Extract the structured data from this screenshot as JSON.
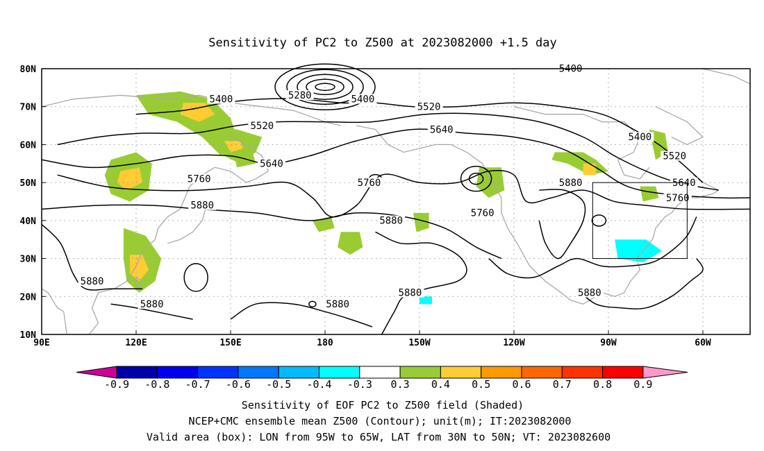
{
  "title": "Sensitivity of PC2 to Z500 at 2023082000 +1.5 day",
  "map": {
    "lon_labels": [
      "90E",
      "120E",
      "150E",
      "180",
      "150W",
      "120W",
      "90W",
      "60W"
    ],
    "lon_values": [
      90,
      120,
      150,
      180,
      210,
      240,
      270,
      300
    ],
    "lat_labels": [
      "10N",
      "20N",
      "30N",
      "40N",
      "50N",
      "60N",
      "70N",
      "80N"
    ],
    "lat_values": [
      10,
      20,
      30,
      40,
      50,
      60,
      70,
      80
    ],
    "lon_range": [
      90,
      315
    ],
    "lat_range": [
      10,
      80
    ],
    "grid": "dotted",
    "coastline_color": "#a9a9a9",
    "valid_box": {
      "lon": [
        265,
        295
      ],
      "lat": [
        30,
        50
      ]
    },
    "contour_labels": [
      {
        "text": "5400",
        "lon": 147,
        "lat": 71.5
      },
      {
        "text": "5280",
        "lon": 172,
        "lat": 72.5
      },
      {
        "text": "5400",
        "lon": 192,
        "lat": 71.5
      },
      {
        "text": "5400",
        "lon": 258,
        "lat": 79.5
      },
      {
        "text": "5520",
        "lon": 160,
        "lat": 64.5
      },
      {
        "text": "5520",
        "lon": 213,
        "lat": 69.5
      },
      {
        "text": "5640",
        "lon": 163,
        "lat": 54.5
      },
      {
        "text": "5640",
        "lon": 217,
        "lat": 63.5
      },
      {
        "text": "5760",
        "lon": 140,
        "lat": 50.5
      },
      {
        "text": "5760",
        "lon": 194,
        "lat": 49.5
      },
      {
        "text": "5760",
        "lon": 230,
        "lat": 41.5
      },
      {
        "text": "5880",
        "lon": 141,
        "lat": 43.5
      },
      {
        "text": "5880",
        "lon": 201,
        "lat": 39.5
      },
      {
        "text": "5880",
        "lon": 207,
        "lat": 20.5
      },
      {
        "text": "5880",
        "lon": 106,
        "lat": 23.5
      },
      {
        "text": "5880",
        "lon": 125,
        "lat": 17.5
      },
      {
        "text": "5880",
        "lon": 184,
        "lat": 17.5
      },
      {
        "text": "5880",
        "lon": 258,
        "lat": 49.5
      },
      {
        "text": "5880",
        "lon": 264,
        "lat": 20.5
      },
      {
        "text": "5400",
        "lon": 280,
        "lat": 61.5
      },
      {
        "text": "5520",
        "lon": 291,
        "lat": 56.5
      },
      {
        "text": "5640",
        "lon": 294,
        "lat": 49.5
      },
      {
        "text": "5760",
        "lon": 292,
        "lat": 45.5
      }
    ],
    "shading_colors": {
      "0.3": "#99cc33",
      "0.4": "#ffcc33",
      "-0.3": "#00ffff",
      "-0.4": "#00e0ff"
    }
  },
  "colorbar": {
    "labels": [
      "-0.9",
      "-0.8",
      "-0.7",
      "-0.6",
      "-0.5",
      "-0.4",
      "-0.3",
      "0.3",
      "0.4",
      "0.5",
      "0.6",
      "0.7",
      "0.8",
      "0.9"
    ],
    "colors": [
      "#0000aa",
      "#0000ee",
      "#0033ff",
      "#0077ff",
      "#00bbff",
      "#00ffff",
      "#ffffff",
      "#99cc33",
      "#ffcc33",
      "#ff9900",
      "#ff6600",
      "#ff3300",
      "#ff0000"
    ],
    "left_end_color": "#cc0099",
    "right_end_color": "#ff99cc"
  },
  "caption": {
    "line1": "Sensitivity of EOF PC2 to Z500 field (Shaded)",
    "line2": "NCEP+CMC ensemble mean Z500 (Contour); unit(m); IT:2023082000",
    "line3": "Valid area (box): LON from 95W to 65W, LAT from 30N to 50N; VT: 2023082600"
  }
}
